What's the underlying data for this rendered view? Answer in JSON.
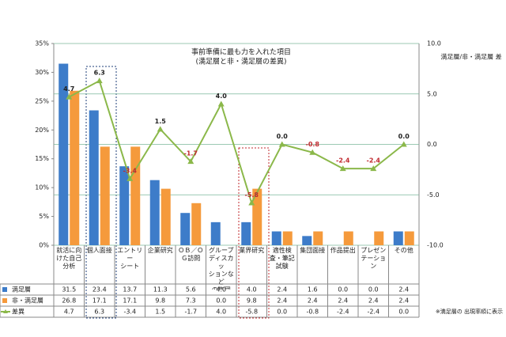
{
  "chart_data": {
    "type": "bar-line",
    "title": "事前準備に最も力を入れた項目",
    "subtitle": "(満足層と非・満足層の差異)",
    "y2_label": "満足層/非・満足層 差",
    "note": "※満足層の 出現率順に表示",
    "categories": [
      "就活に向\nけた自己\n分析",
      "個人面接",
      "エントリー\nシート",
      "企業研究",
      "ＯＢ／Ｏ\nＧ訪問",
      "グループ\nディスカッ\nションなど\nの集団\nワーク",
      "業界研究",
      "適性検\n査・筆記\n試験",
      "集団面接",
      "作品提出",
      "プレゼン\nテーション",
      "その他"
    ],
    "series": [
      {
        "name": "満足層",
        "color": "#3d7cc9",
        "type": "bar",
        "values": [
          31.5,
          23.4,
          13.7,
          11.3,
          5.6,
          4.0,
          4.0,
          2.4,
          1.6,
          0.0,
          0.0,
          2.4
        ],
        "value_labels": [
          "31.5",
          "23.4",
          "13.7",
          "11.3",
          "5.6",
          "4.0",
          "4.0",
          "2.4",
          "1.6",
          "0.0",
          "0.0",
          "2.4"
        ]
      },
      {
        "name": "非・満足層",
        "color": "#f59a3c",
        "type": "bar",
        "values": [
          26.8,
          17.1,
          17.1,
          9.8,
          7.3,
          0.0,
          9.8,
          2.4,
          2.4,
          2.4,
          2.4,
          2.4
        ],
        "value_labels": [
          "26.8",
          "17.1",
          "17.1",
          "9.8",
          "7.3",
          "0.0",
          "9.8",
          "2.4",
          "2.4",
          "2.4",
          "2.4",
          "2.4"
        ]
      },
      {
        "name": "差異",
        "color": "#8bb84a",
        "type": "line",
        "axis": "y2",
        "values": [
          4.7,
          6.3,
          -3.4,
          1.5,
          -1.7,
          4.0,
          -5.8,
          0.0,
          -0.8,
          -2.4,
          -2.4,
          0.0
        ],
        "value_labels": [
          "4.7",
          "6.3",
          "-3.4",
          "1.5",
          "-1.7",
          "4.0",
          "-5.8",
          "0.0",
          "-0.8",
          "-2.4",
          "-2.4",
          "0.0"
        ]
      }
    ],
    "ylim": [
      0,
      35
    ],
    "yticks": [
      {
        "value": 0,
        "label": "0%"
      },
      {
        "value": 5,
        "label": "5%"
      },
      {
        "value": 10,
        "label": "10%"
      },
      {
        "value": 15,
        "label": "15%"
      },
      {
        "value": 20,
        "label": "20%"
      },
      {
        "value": 25,
        "label": "25%"
      },
      {
        "value": 30,
        "label": "30%"
      },
      {
        "value": 35,
        "label": "35%"
      }
    ],
    "y2lim": [
      -10,
      10
    ],
    "y2ticks": [
      {
        "value": -10,
        "label": "-10.0"
      },
      {
        "value": -5,
        "label": "-5.0"
      },
      {
        "value": 0,
        "label": "0.0"
      },
      {
        "value": 5,
        "label": "5.0"
      },
      {
        "value": 10,
        "label": "10.0"
      }
    ],
    "grid": true
  }
}
